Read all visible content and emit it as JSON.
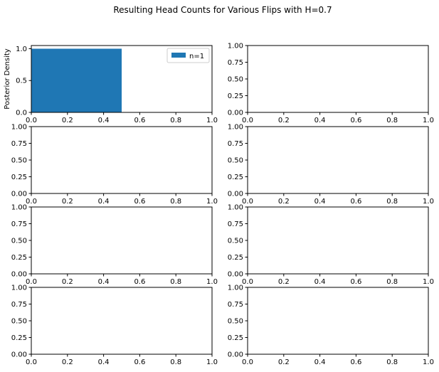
{
  "figure": {
    "title": "Resulting Head Counts for Various Flips with H=0.7"
  },
  "colors": {
    "bar": "#1f77b4",
    "axes": "#000000",
    "background": "#ffffff"
  },
  "chart_data": [
    {
      "type": "bar",
      "xlim": [
        0,
        1
      ],
      "ylim": [
        0,
        1.05
      ],
      "x_ticks": [
        0.0,
        0.2,
        0.4,
        0.6,
        0.8,
        1.0
      ],
      "x_tick_labels": [
        "0.0",
        "0.2",
        "0.4",
        "0.6",
        "0.8",
        "1.0"
      ],
      "y_ticks": [
        0.0,
        0.5,
        1.0
      ],
      "y_tick_labels": [
        "0.0",
        "0.5",
        "1.0"
      ],
      "ylabel": "Posterior Density",
      "bars": [
        {
          "x0": 0.0,
          "x1": 0.5,
          "value": 1.0
        }
      ],
      "legend": {
        "entries": [
          "n=1"
        ],
        "placement": "upper-right"
      }
    },
    {
      "type": "bar",
      "xlim": [
        0,
        1
      ],
      "ylim": [
        0,
        1
      ],
      "x_ticks": [
        0.0,
        0.2,
        0.4,
        0.6,
        0.8,
        1.0
      ],
      "x_tick_labels": [
        "0.0",
        "0.2",
        "0.4",
        "0.6",
        "0.8",
        "1.0"
      ],
      "y_ticks": [
        0.0,
        0.25,
        0.5,
        0.75,
        1.0
      ],
      "y_tick_labels": [
        "0.00",
        "0.25",
        "0.50",
        "0.75",
        "1.00"
      ],
      "bars": []
    },
    {
      "type": "bar",
      "xlim": [
        0,
        1
      ],
      "ylim": [
        0,
        1
      ],
      "x_ticks": [
        0.0,
        0.2,
        0.4,
        0.6,
        0.8,
        1.0
      ],
      "x_tick_labels": [
        "0.0",
        "0.2",
        "0.4",
        "0.6",
        "0.8",
        "1.0"
      ],
      "y_ticks": [
        0.0,
        0.25,
        0.5,
        0.75,
        1.0
      ],
      "y_tick_labels": [
        "0.00",
        "0.25",
        "0.50",
        "0.75",
        "1.00"
      ],
      "bars": []
    },
    {
      "type": "bar",
      "xlim": [
        0,
        1
      ],
      "ylim": [
        0,
        1
      ],
      "x_ticks": [
        0.0,
        0.2,
        0.4,
        0.6,
        0.8,
        1.0
      ],
      "x_tick_labels": [
        "0.0",
        "0.2",
        "0.4",
        "0.6",
        "0.8",
        "1.0"
      ],
      "y_ticks": [
        0.0,
        0.25,
        0.5,
        0.75,
        1.0
      ],
      "y_tick_labels": [
        "0.00",
        "0.25",
        "0.50",
        "0.75",
        "1.00"
      ],
      "bars": []
    },
    {
      "type": "bar",
      "xlim": [
        0,
        1
      ],
      "ylim": [
        0,
        1
      ],
      "x_ticks": [
        0.0,
        0.2,
        0.4,
        0.6,
        0.8,
        1.0
      ],
      "x_tick_labels": [
        "0.0",
        "0.2",
        "0.4",
        "0.6",
        "0.8",
        "1.0"
      ],
      "y_ticks": [
        0.0,
        0.25,
        0.5,
        0.75,
        1.0
      ],
      "y_tick_labels": [
        "0.00",
        "0.25",
        "0.50",
        "0.75",
        "1.00"
      ],
      "bars": []
    },
    {
      "type": "bar",
      "xlim": [
        0,
        1
      ],
      "ylim": [
        0,
        1
      ],
      "x_ticks": [
        0.0,
        0.2,
        0.4,
        0.6,
        0.8,
        1.0
      ],
      "x_tick_labels": [
        "0.0",
        "0.2",
        "0.4",
        "0.6",
        "0.8",
        "1.0"
      ],
      "y_ticks": [
        0.0,
        0.25,
        0.5,
        0.75,
        1.0
      ],
      "y_tick_labels": [
        "0.00",
        "0.25",
        "0.50",
        "0.75",
        "1.00"
      ],
      "bars": []
    },
    {
      "type": "bar",
      "xlim": [
        0,
        1
      ],
      "ylim": [
        0,
        1
      ],
      "x_ticks": [
        0.0,
        0.2,
        0.4,
        0.6,
        0.8,
        1.0
      ],
      "x_tick_labels": [
        "0.0",
        "0.2",
        "0.4",
        "0.6",
        "0.8",
        "1.0"
      ],
      "y_ticks": [
        0.0,
        0.25,
        0.5,
        0.75,
        1.0
      ],
      "y_tick_labels": [
        "0.00",
        "0.25",
        "0.50",
        "0.75",
        "1.00"
      ],
      "bars": []
    },
    {
      "type": "bar",
      "xlim": [
        0,
        1
      ],
      "ylim": [
        0,
        1
      ],
      "x_ticks": [
        0.0,
        0.2,
        0.4,
        0.6,
        0.8,
        1.0
      ],
      "x_tick_labels": [
        "0.0",
        "0.2",
        "0.4",
        "0.6",
        "0.8",
        "1.0"
      ],
      "y_ticks": [
        0.0,
        0.25,
        0.5,
        0.75,
        1.0
      ],
      "y_tick_labels": [
        "0.00",
        "0.25",
        "0.50",
        "0.75",
        "1.00"
      ],
      "bars": []
    }
  ]
}
